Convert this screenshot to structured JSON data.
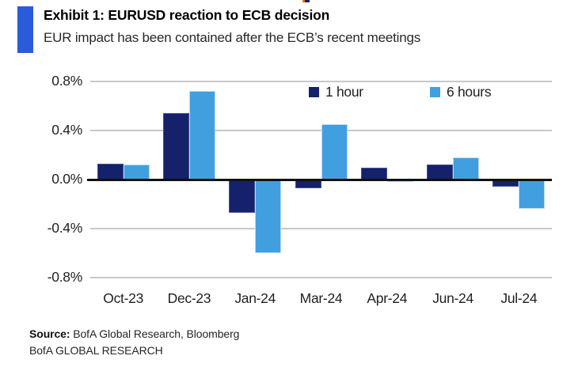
{
  "header": {
    "title": "Exhibit 1: EURUSD reaction to ECB decision",
    "subtitle": "EUR impact has been contained after the ECB’s recent meetings"
  },
  "chart_data": {
    "type": "bar",
    "title": "Exhibit 1: EURUSD reaction to ECB decision",
    "subtitle": "EUR impact has been contained after the ECB’s recent meetings",
    "categories": [
      "Oct-23",
      "Dec-23",
      "Jan-24",
      "Mar-24",
      "Apr-24",
      "Jun-24",
      "Jul-24"
    ],
    "series": [
      {
        "name": "1 hour",
        "color": "#16216b",
        "values": [
          0.13,
          0.54,
          -0.27,
          -0.07,
          0.1,
          0.12,
          -0.06
        ]
      },
      {
        "name": "6 hours",
        "color": "#419fe0",
        "values": [
          0.12,
          0.72,
          -0.6,
          0.45,
          -0.02,
          0.18,
          -0.24
        ]
      }
    ],
    "xlabel": "",
    "ylabel": "",
    "unit": "%",
    "ylim": [
      -0.8,
      0.8
    ],
    "yticks": [
      0.8,
      0.4,
      0.0,
      -0.4,
      -0.8
    ],
    "ytick_labels": [
      "0.8%",
      "0.4%",
      "0.0%",
      "-0.4%",
      "-0.8%"
    ],
    "grid": true,
    "zero_line": true,
    "legend_position": "top-right"
  },
  "footer": {
    "source_label": "Source:",
    "source_text": "BofA Global Research, Bloomberg",
    "brand_line": "BofA GLOBAL RESEARCH"
  },
  "colors": {
    "accent": "#2a5cda",
    "gridline": "#c8c8c8",
    "zero_line": "#111111"
  }
}
